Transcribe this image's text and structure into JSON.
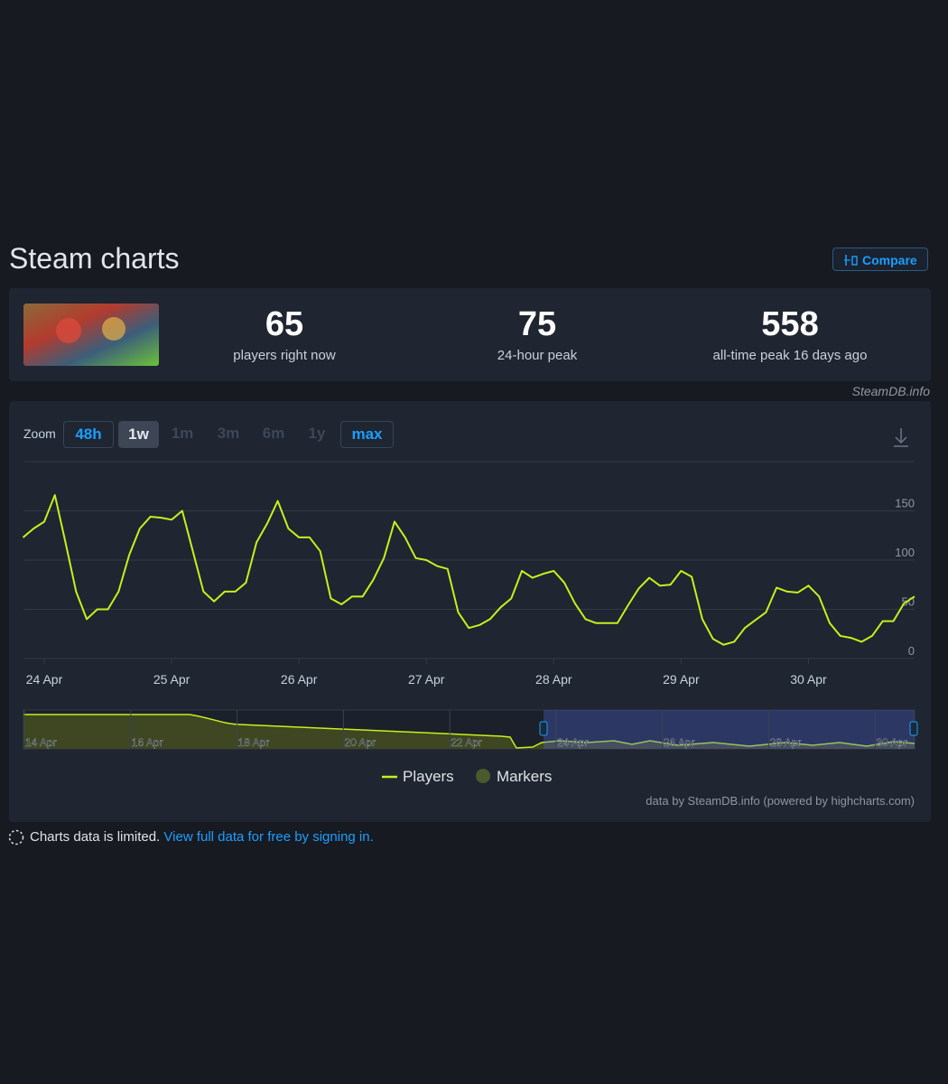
{
  "header": {
    "title": "Steam charts",
    "compare": "Compare"
  },
  "stats": [
    {
      "value": 65,
      "label": "players right now"
    },
    {
      "value": 75,
      "label": "24-hour peak"
    },
    {
      "value": 558,
      "label": "all-time peak 16 days ago"
    }
  ],
  "source": "SteamDB.info",
  "zoom": {
    "label": "Zoom",
    "options": [
      "48h",
      "1w",
      "1m",
      "3m",
      "6m",
      "1y",
      "max"
    ]
  },
  "chart_data": {
    "type": "line",
    "categories": [
      null,
      null,
      "24 Apr",
      null,
      null,
      null,
      null,
      null,
      null,
      null,
      null,
      null,
      null,
      null,
      "25 Apr",
      null,
      null,
      null,
      null,
      null,
      null,
      null,
      null,
      null,
      null,
      null,
      "26 Apr",
      null,
      null,
      null,
      null,
      null,
      null,
      null,
      null,
      null,
      null,
      null,
      "27 Apr",
      null,
      null,
      null,
      null,
      null,
      null,
      null,
      null,
      null,
      null,
      null,
      "28 Apr",
      null,
      null,
      null,
      null,
      null,
      null,
      null,
      null,
      null,
      null,
      null,
      "29 Apr",
      null,
      null,
      null,
      null,
      null,
      null,
      null,
      null,
      null,
      null,
      null,
      "30 Apr",
      null,
      null,
      null,
      null,
      null,
      null,
      null,
      null,
      null,
      null
    ],
    "series": [
      {
        "name": "Players",
        "color": "#c6f01c",
        "values": [
          123,
          132,
          139,
          166,
          118,
          68,
          40,
          50,
          50,
          68,
          105,
          132,
          144,
          143,
          141,
          150,
          109,
          68,
          58,
          68,
          68,
          77,
          118,
          137,
          160,
          132,
          123,
          123,
          109,
          61,
          55,
          63,
          63,
          80,
          102,
          139,
          123,
          102,
          100,
          94,
          91,
          47,
          31,
          34,
          40,
          52,
          61,
          89,
          82,
          86,
          89,
          77,
          56,
          40,
          36,
          36,
          36,
          54,
          71,
          82,
          74,
          75,
          89,
          83,
          40,
          20,
          14,
          17,
          31,
          39,
          47,
          72,
          68,
          67,
          74,
          63,
          36,
          23,
          21,
          17,
          23,
          38,
          38,
          56,
          63
        ]
      }
    ],
    "markers": {
      "name": "Markers",
      "color": "#4b5a2c"
    },
    "ylim": [
      0,
      200
    ],
    "yticks": [
      0,
      50,
      100,
      150
    ],
    "grid": true,
    "legend": "bottom"
  },
  "navigator": {
    "labels": [
      "14 Apr",
      "16 Apr",
      "18 Apr",
      "20 Apr",
      "22 Apr",
      "24 Apr",
      "26 Apr",
      "28 Apr",
      "30 Apr"
    ]
  },
  "credit": "data by SteamDB.info (powered by highcharts.com)",
  "notice": {
    "text": "Charts data is limited.",
    "link": "View full data for free by signing in."
  }
}
